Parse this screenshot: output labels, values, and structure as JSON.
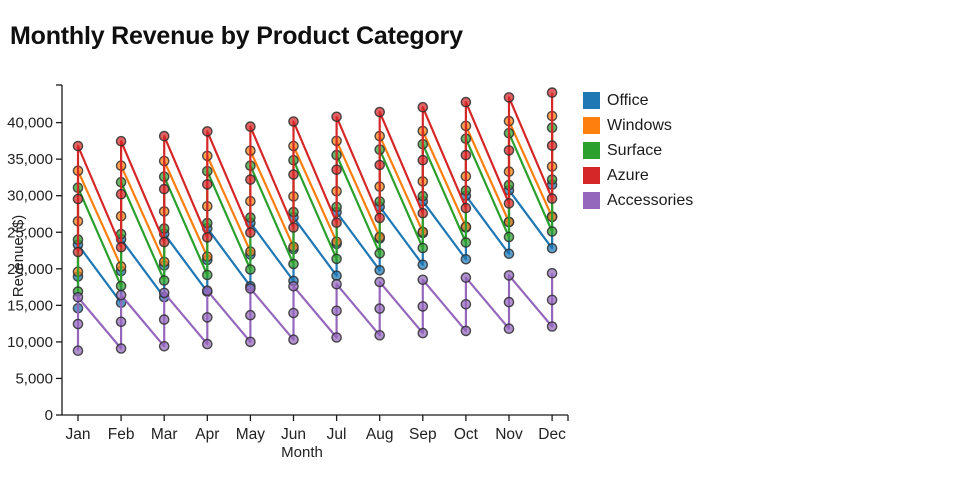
{
  "title": "Monthly Revenue by Product Category",
  "axes": {
    "xlabel": "Month",
    "ylabel": "Revenue ($)",
    "x_tick_labels": [
      "Jan",
      "Feb",
      "Mar",
      "Apr",
      "May",
      "Jun",
      "Jul",
      "Aug",
      "Sep",
      "Oct",
      "Nov",
      "Dec"
    ],
    "y_tick_labels": [
      "0",
      "5,000",
      "10,000",
      "15,000",
      "20,000",
      "25,000",
      "30,000",
      "35,000",
      "40,000"
    ]
  },
  "legend": {
    "items": [
      {
        "label": "Office",
        "color": "#1f77b4"
      },
      {
        "label": "Windows",
        "color": "#ff7f0e"
      },
      {
        "label": "Surface",
        "color": "#2ca02c"
      },
      {
        "label": "Azure",
        "color": "#d62728"
      },
      {
        "label": "Accessories",
        "color": "#9467bd"
      }
    ]
  },
  "colors": {
    "text": "#222222",
    "axis": "#1a1a1a",
    "marker_edge": "#2f2f2f"
  },
  "chart_data": {
    "type": "line",
    "title": "Monthly Revenue by Product Category",
    "xlabel": "Month",
    "ylabel": "Revenue ($)",
    "categories": [
      "Jan",
      "Feb",
      "Mar",
      "Apr",
      "May",
      "Jun",
      "Jul",
      "Aug",
      "Sep",
      "Oct",
      "Nov",
      "Dec"
    ],
    "points_per_month": 3,
    "ylim": [
      0,
      45000
    ],
    "yticks": [
      0,
      5000,
      10000,
      15000,
      20000,
      25000,
      30000,
      35000,
      40000
    ],
    "grid": false,
    "legend_position": "top-right",
    "marker": "circle",
    "series": [
      {
        "name": "Office",
        "color": "#1f77b4",
        "monthly_values": [
          [
            14600,
            18950,
            23300
          ],
          [
            15350,
            19700,
            24050
          ],
          [
            16100,
            20450,
            24800
          ],
          [
            16850,
            21200,
            25550
          ],
          [
            17600,
            21950,
            26300
          ],
          [
            18350,
            22700,
            27050
          ],
          [
            19050,
            23400,
            27750
          ],
          [
            19800,
            24150,
            28500
          ],
          [
            20550,
            24900,
            29250
          ],
          [
            21300,
            25650,
            30000
          ],
          [
            22050,
            26400,
            30750
          ],
          [
            22800,
            27150,
            31500
          ]
        ]
      },
      {
        "name": "Windows",
        "color": "#ff7f0e",
        "monthly_values": [
          [
            19600,
            26500,
            33400
          ],
          [
            20300,
            27200,
            34100
          ],
          [
            20950,
            27850,
            34750
          ],
          [
            21650,
            28550,
            35450
          ],
          [
            22350,
            29250,
            36150
          ],
          [
            23000,
            29900,
            36800
          ],
          [
            23700,
            30600,
            37500
          ],
          [
            24350,
            31250,
            38150
          ],
          [
            25050,
            31950,
            38850
          ],
          [
            25750,
            32650,
            39550
          ],
          [
            26400,
            33300,
            40200
          ],
          [
            27100,
            34000,
            40900
          ]
        ]
      },
      {
        "name": "Surface",
        "color": "#2ca02c",
        "monthly_values": [
          [
            16900,
            24000,
            31100
          ],
          [
            17650,
            24750,
            31850
          ],
          [
            18400,
            25500,
            32600
          ],
          [
            19150,
            26250,
            33350
          ],
          [
            19900,
            27000,
            34100
          ],
          [
            20650,
            27750,
            34850
          ],
          [
            21350,
            28450,
            35550
          ],
          [
            22100,
            29200,
            36300
          ],
          [
            22850,
            29950,
            37050
          ],
          [
            23600,
            30700,
            37800
          ],
          [
            24350,
            31450,
            38550
          ],
          [
            25100,
            32200,
            39300
          ]
        ]
      },
      {
        "name": "Azure",
        "color": "#d62728",
        "monthly_values": [
          [
            22300,
            29550,
            36800
          ],
          [
            22950,
            30200,
            37450
          ],
          [
            23650,
            30900,
            38150
          ],
          [
            24300,
            31550,
            38800
          ],
          [
            24950,
            32200,
            39450
          ],
          [
            25650,
            32900,
            40150
          ],
          [
            26300,
            33550,
            40800
          ],
          [
            26950,
            34200,
            41450
          ],
          [
            27600,
            34850,
            42100
          ],
          [
            28300,
            35550,
            42800
          ],
          [
            28950,
            36200,
            43450
          ],
          [
            29600,
            36850,
            44100
          ]
        ]
      },
      {
        "name": "Accessories",
        "color": "#9467bd",
        "monthly_values": [
          [
            8800,
            12450,
            16100
          ],
          [
            9100,
            12750,
            16400
          ],
          [
            9400,
            13050,
            16700
          ],
          [
            9700,
            13350,
            17000
          ],
          [
            10000,
            13650,
            17300
          ],
          [
            10300,
            13950,
            17600
          ],
          [
            10600,
            14250,
            17900
          ],
          [
            10900,
            14550,
            18200
          ],
          [
            11200,
            14850,
            18500
          ],
          [
            11500,
            15150,
            18800
          ],
          [
            11800,
            15450,
            19100
          ],
          [
            12100,
            15750,
            19400
          ]
        ]
      }
    ]
  }
}
